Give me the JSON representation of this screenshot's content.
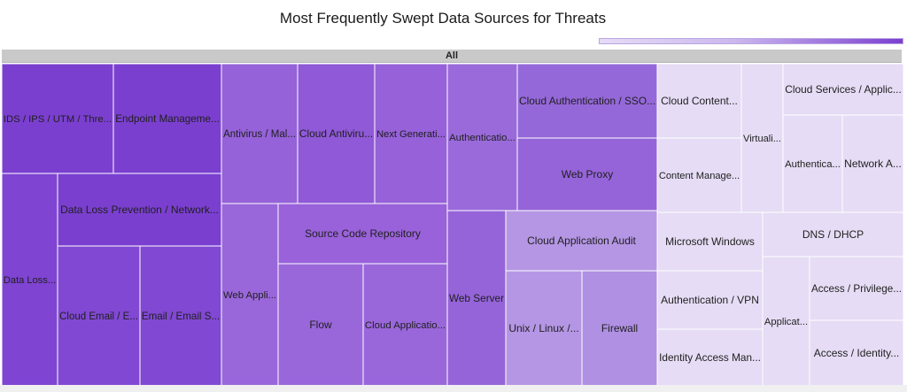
{
  "title": "Most Frequently Swept Data Sources for Threats",
  "root_label": "All",
  "colors": {
    "scale_low": "#e6dcf5",
    "scale_high": "#7b3fd0",
    "root_bar": "#c9c9c9",
    "tile_border": "#ffffff"
  },
  "chart_data": {
    "type": "treemap",
    "title": "Most Frequently Swept Data Sources for Threats",
    "root": "All",
    "color_scale": {
      "low": "#e6dcf5",
      "high": "#7b3fd0"
    },
    "leaves": [
      {
        "label": "IDS / IPS / UTM / Thre...",
        "color": "#7b3fd0"
      },
      {
        "label": "Endpoint Manageme...",
        "color": "#7b3fd0"
      },
      {
        "label": "Data Loss...",
        "color": "#7f44d2"
      },
      {
        "label": "Data Loss Prevention / Network...",
        "color": "#7b3fd0"
      },
      {
        "label": "Cloud Email / E...",
        "color": "#8148d3"
      },
      {
        "label": "Email / Email S...",
        "color": "#8148d3"
      },
      {
        "label": "Antivirus / Mal...",
        "color": "#9562d9"
      },
      {
        "label": "Cloud Antiviru...",
        "color": "#8f59d7"
      },
      {
        "label": "Next Generati...",
        "color": "#9661d9"
      },
      {
        "label": "Web Appli...",
        "color": "#9a67db"
      },
      {
        "label": "Source Code Repository",
        "color": "#9962da"
      },
      {
        "label": "Flow",
        "color": "#9a67db"
      },
      {
        "label": "Cloud Applicatio...",
        "color": "#9a67db"
      },
      {
        "label": "Authenticatio...",
        "color": "#9a6adb"
      },
      {
        "label": "Cloud Authentication / SSO...",
        "color": "#9568da"
      },
      {
        "label": "Web Proxy",
        "color": "#9564d9"
      },
      {
        "label": "Web Server",
        "color": "#9564d9"
      },
      {
        "label": "Cloud Application Audit",
        "color": "#b596e4"
      },
      {
        "label": "Unix / Linux /...",
        "color": "#b596e4"
      },
      {
        "label": "Firewall",
        "color": "#b090e3"
      },
      {
        "label": "Cloud Content...",
        "color": "#e6dcf5"
      },
      {
        "label": "Content Manage...",
        "color": "#e6dcf5"
      },
      {
        "label": "Virtuali...",
        "color": "#e6dcf5"
      },
      {
        "label": "Cloud Services / Applic...",
        "color": "#e6dcf5"
      },
      {
        "label": "Authentica...",
        "color": "#e6dcf5"
      },
      {
        "label": "Network A...",
        "color": "#e6dcf5"
      },
      {
        "label": "Microsoft Windows",
        "color": "#e6dcf5"
      },
      {
        "label": "DNS / DHCP",
        "color": "#e6dcf5"
      },
      {
        "label": "Authentication / VPN",
        "color": "#e6dcf5"
      },
      {
        "label": "Applicat...",
        "color": "#e6dcf5"
      },
      {
        "label": "Access / Privilege...",
        "color": "#e6dcf5"
      },
      {
        "label": "Identity Access Man...",
        "color": "#e6dcf5"
      },
      {
        "label": "Access / Identity...",
        "color": "#e6dcf5"
      }
    ]
  }
}
